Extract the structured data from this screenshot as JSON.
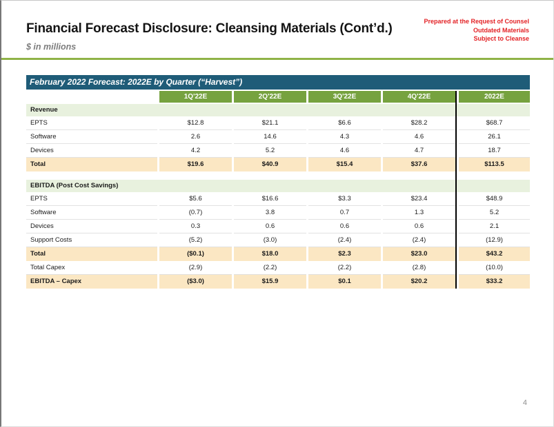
{
  "slide": {
    "title": "Financial Forecast Disclosure: Cleansing Materials (Cont’d.)",
    "subtitle": "$ in millions",
    "disclaimer_lines": [
      "Prepared at the Request of Counsel",
      "Outdated Materials",
      "Subject to Cleanse"
    ],
    "page_number": "4"
  },
  "table": {
    "title": "February 2022 Forecast: 2022E by Quarter (“Harvest”)",
    "columns": [
      "1Q'22E",
      "2Q'22E",
      "3Q'22E",
      "4Q'22E",
      "2022E"
    ],
    "sections": [
      {
        "header": "Revenue",
        "rows": [
          {
            "label": "EPTS",
            "style": "normal",
            "values": [
              "$12.8",
              "$21.1",
              "$6.6",
              "$28.2",
              "$68.7"
            ]
          },
          {
            "label": "Software",
            "style": "normal",
            "values": [
              "2.6",
              "14.6",
              "4.3",
              "4.6",
              "26.1"
            ]
          },
          {
            "label": "Devices",
            "style": "normal",
            "values": [
              "4.2",
              "5.2",
              "4.6",
              "4.7",
              "18.7"
            ]
          },
          {
            "label": "Total",
            "style": "total",
            "values": [
              "$19.6",
              "$40.9",
              "$15.4",
              "$37.6",
              "$113.5"
            ]
          }
        ]
      },
      {
        "header": "EBITDA (Post Cost Savings)",
        "rows": [
          {
            "label": "EPTS",
            "style": "normal",
            "values": [
              "$5.6",
              "$16.6",
              "$3.3",
              "$23.4",
              "$48.9"
            ]
          },
          {
            "label": "Software",
            "style": "normal",
            "values": [
              "(0.7)",
              "3.8",
              "0.7",
              "1.3",
              "5.2"
            ]
          },
          {
            "label": "Devices",
            "style": "normal",
            "values": [
              "0.3",
              "0.6",
              "0.6",
              "0.6",
              "2.1"
            ]
          },
          {
            "label": "Support Costs",
            "style": "normal",
            "values": [
              "(5.2)",
              "(3.0)",
              "(2.4)",
              "(2.4)",
              "(12.9)"
            ]
          },
          {
            "label": "Total",
            "style": "total",
            "values": [
              "($0.1)",
              "$18.0",
              "$2.3",
              "$23.0",
              "$43.2"
            ]
          },
          {
            "label": "Total Capex",
            "style": "normal",
            "values": [
              "(2.9)",
              "(2.2)",
              "(2.2)",
              "(2.8)",
              "(10.0)"
            ]
          },
          {
            "label": "EBITDA – Capex",
            "style": "total",
            "values": [
              "($3.0)",
              "$15.9",
              "$0.1",
              "$20.2",
              "$33.2"
            ]
          }
        ]
      }
    ]
  },
  "colors": {
    "banner_teal": "#1f5c78",
    "column_header_green": "#76a23f",
    "section_row_green": "#e8f1de",
    "total_row_cream": "#fbe7c3",
    "header_rule_green": "#8fb347",
    "disclaimer_red": "#e32125",
    "divider_black": "#000000"
  },
  "chart_data": {
    "type": "table",
    "title": "February 2022 Forecast: 2022E by Quarter (“Harvest”)",
    "units": "$ in millions",
    "categories": [
      "1Q'22E",
      "2Q'22E",
      "3Q'22E",
      "4Q'22E",
      "2022E"
    ],
    "series": [
      {
        "name": "Revenue - EPTS",
        "values": [
          12.8,
          21.1,
          6.6,
          28.2,
          68.7
        ]
      },
      {
        "name": "Revenue - Software",
        "values": [
          2.6,
          14.6,
          4.3,
          4.6,
          26.1
        ]
      },
      {
        "name": "Revenue - Devices",
        "values": [
          4.2,
          5.2,
          4.6,
          4.7,
          18.7
        ]
      },
      {
        "name": "Revenue - Total",
        "values": [
          19.6,
          40.9,
          15.4,
          37.6,
          113.5
        ]
      },
      {
        "name": "EBITDA - EPTS",
        "values": [
          5.6,
          16.6,
          3.3,
          23.4,
          48.9
        ]
      },
      {
        "name": "EBITDA - Software",
        "values": [
          -0.7,
          3.8,
          0.7,
          1.3,
          5.2
        ]
      },
      {
        "name": "EBITDA - Devices",
        "values": [
          0.3,
          0.6,
          0.6,
          0.6,
          2.1
        ]
      },
      {
        "name": "EBITDA - Support Costs",
        "values": [
          -5.2,
          -3.0,
          -2.4,
          -2.4,
          -12.9
        ]
      },
      {
        "name": "EBITDA - Total",
        "values": [
          -0.1,
          18.0,
          2.3,
          23.0,
          43.2
        ]
      },
      {
        "name": "Total Capex",
        "values": [
          -2.9,
          -2.2,
          -2.2,
          -2.8,
          -10.0
        ]
      },
      {
        "name": "EBITDA minus Capex",
        "values": [
          -3.0,
          15.9,
          0.1,
          20.2,
          33.2
        ]
      }
    ]
  }
}
